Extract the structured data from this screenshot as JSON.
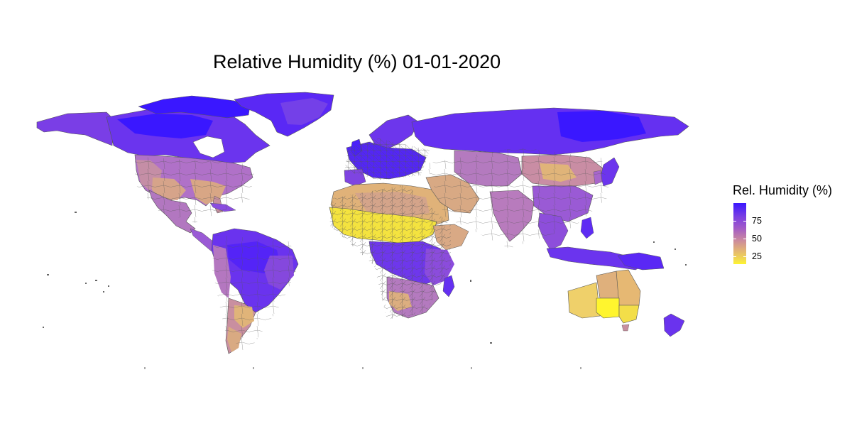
{
  "title": "Relative Humidity (%) 01-01-2020",
  "legend": {
    "title": "Rel. Humidity (%)",
    "labels": [
      "75",
      "50",
      "25"
    ],
    "colors": {
      "high": "#3a17ff",
      "upper_mid": "#7a3fe3",
      "mid": "#c987a0",
      "low": "#e3b573",
      "lowest": "#fff52e"
    }
  },
  "map": {
    "description_icon": "world-choropleth",
    "border_color": "#555555",
    "ocean_color": "#ffffff"
  }
}
